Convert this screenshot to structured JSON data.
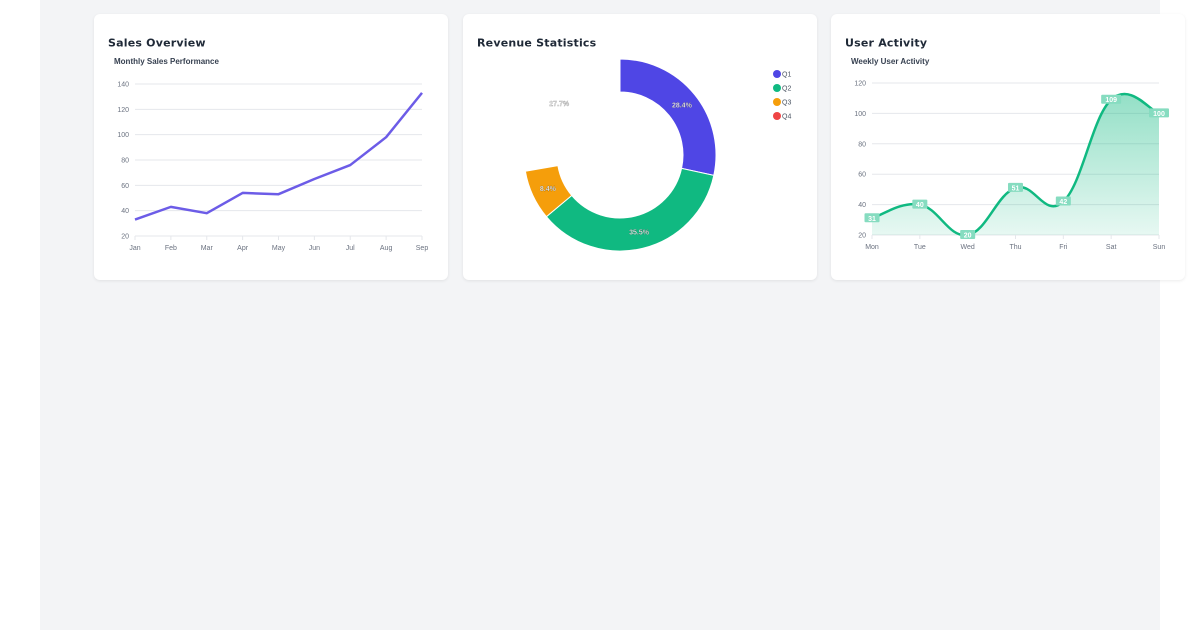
{
  "cards": [
    {
      "title": "Sales Overview"
    },
    {
      "title": "Revenue Statistics"
    },
    {
      "title": "User Activity"
    }
  ],
  "chart_data": [
    {
      "type": "line",
      "title": "Monthly Sales Performance",
      "categories": [
        "Jan",
        "Feb",
        "Mar",
        "Apr",
        "May",
        "Jun",
        "Jul",
        "Aug",
        "Sep"
      ],
      "values": [
        33,
        43,
        38,
        54,
        53,
        65,
        76,
        98,
        133
      ],
      "ylim": [
        20,
        140
      ],
      "yticks": [
        20,
        40,
        60,
        80,
        100,
        120,
        140
      ],
      "grid": true,
      "color": "#6c5ce7"
    },
    {
      "type": "pie",
      "subtype": "donut",
      "categories": [
        "Q1",
        "Q2",
        "Q3",
        "Q4"
      ],
      "values": [
        28.4,
        35.5,
        8.4,
        27.7
      ],
      "labels": [
        "28.4%",
        "35.5%",
        "8.4%",
        "27.7%"
      ],
      "colors": [
        "#4f46e5",
        "#10b981",
        "#f59e0b",
        "#ef4444"
      ],
      "legend": "top-right"
    },
    {
      "type": "area",
      "title": "Weekly User Activity",
      "categories": [
        "Mon",
        "Tue",
        "Wed",
        "Thu",
        "Fri",
        "Sat",
        "Sun"
      ],
      "values": [
        31,
        40,
        20,
        51,
        42,
        109,
        100
      ],
      "labels": [
        "31",
        "40",
        "20",
        "51",
        "42",
        "109",
        "100"
      ],
      "ylim": [
        20,
        120
      ],
      "yticks": [
        20,
        40,
        60,
        80,
        100,
        120
      ],
      "grid": true,
      "color": "#10b981"
    }
  ]
}
